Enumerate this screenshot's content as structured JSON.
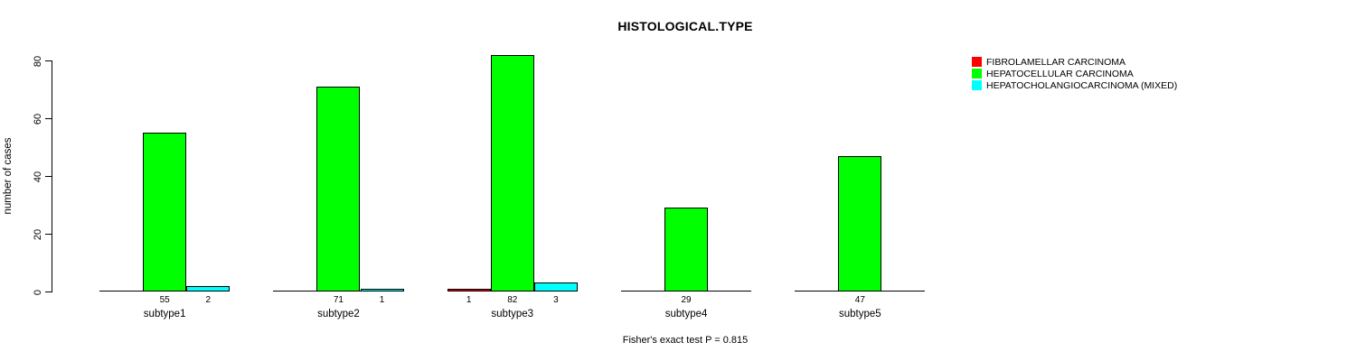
{
  "chart_data": {
    "type": "bar",
    "title": "HISTOLOGICAL.TYPE",
    "ylabel": "number of cases",
    "xlabel": "",
    "ylim": [
      0,
      80
    ],
    "yticks": [
      0,
      20,
      40,
      60,
      80
    ],
    "grid": false,
    "legend_position": "top-right",
    "categories": [
      "subtype1",
      "subtype2",
      "subtype3",
      "subtype4",
      "subtype5"
    ],
    "series": [
      {
        "name": "FIBROLAMELLAR CARCINOMA",
        "color": "#ff0000",
        "values": [
          0,
          0,
          1,
          0,
          0
        ]
      },
      {
        "name": "HEPATOCELLULAR CARCINOMA",
        "color": "#00ff00",
        "values": [
          55,
          71,
          82,
          29,
          47
        ]
      },
      {
        "name": "HEPATOCHOLANGIOCARCINOMA (MIXED)",
        "color": "#00ffff",
        "values": [
          2,
          1,
          3,
          0,
          0
        ]
      }
    ],
    "value_labels": "shown under each drawn bar, zero bars omitted",
    "footnote": "Fisher's exact test P = 0.815"
  }
}
